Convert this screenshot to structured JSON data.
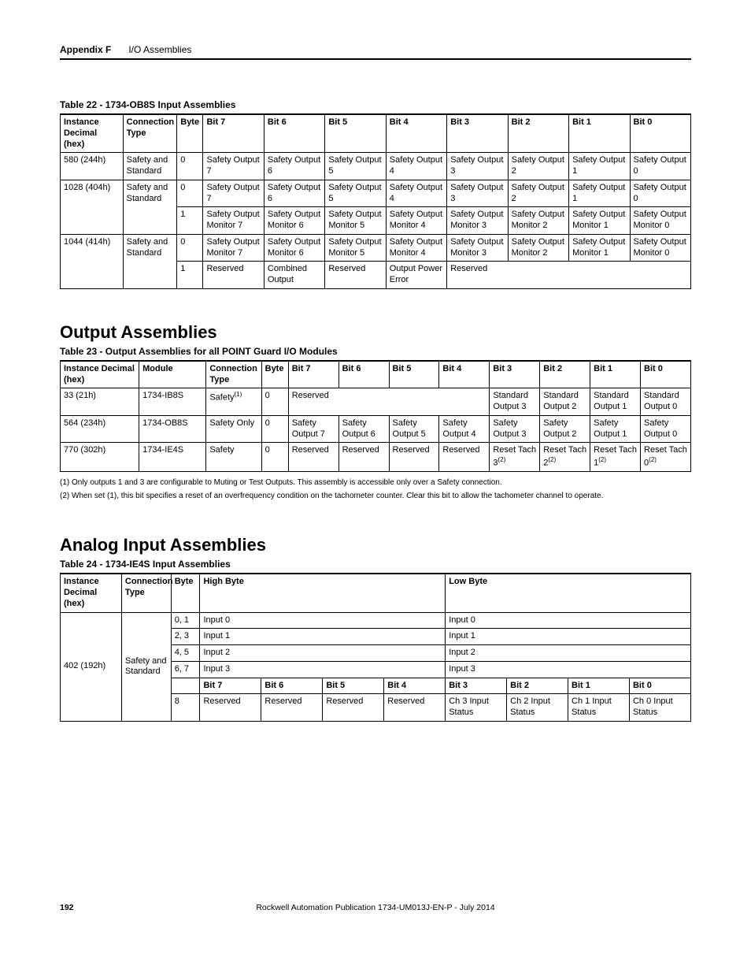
{
  "header": {
    "appendix": "Appendix F",
    "subtitle": "I/O Assemblies"
  },
  "table22": {
    "caption": "Table 22 - 1734-OB8S Input Assemblies",
    "headers": [
      "Instance Decimal (hex)",
      "Connection Type",
      "Byte",
      "Bit 7",
      "Bit 6",
      "Bit 5",
      "Bit 4",
      "Bit 3",
      "Bit 2",
      "Bit 1",
      "Bit 0"
    ],
    "rows": [
      {
        "instance": "580 (244h)",
        "conn": "Safety and Standard",
        "byte": "0",
        "b7": "Safety Output 7",
        "b6": "Safety Output 6",
        "b5": "Safety Output 5",
        "b4": "Safety Output 4",
        "b3": "Safety Output 3",
        "b2": "Safety Output 2",
        "b1": "Safety Output 1",
        "b0": "Safety Output 0"
      },
      {
        "instance": "1028 (404h)",
        "conn": "Safety and Standard",
        "byte": "0",
        "b7": "Safety Output 7",
        "b6": "Safety Output 6",
        "b5": "Safety Output 5",
        "b4": "Safety Output 4",
        "b3": "Safety Output 3",
        "b2": "Safety Output 2",
        "b1": "Safety Output 1",
        "b0": "Safety Output 0",
        "byte2": "1",
        "r2b7": "Safety Output Monitor 7",
        "r2b6": "Safety Output Monitor 6",
        "r2b5": "Safety Output Monitor 5",
        "r2b4": "Safety Output Monitor 4",
        "r2b3": "Safety Output Monitor 3",
        "r2b2": "Safety Output Monitor 2",
        "r2b1": "Safety Output Monitor 1",
        "r2b0": "Safety Output Monitor 0"
      },
      {
        "instance": "1044 (414h)",
        "conn": "Safety and Standard",
        "byte": "0",
        "b7": "Safety Output Monitor 7",
        "b6": "Safety Output Monitor 6",
        "b5": "Safety Output Monitor 5",
        "b4": "Safety Output Monitor 4",
        "b3": "Safety Output Monitor 3",
        "b2": "Safety Output Monitor 2",
        "b1": "Safety Output Monitor 1",
        "b0": "Safety Output Monitor 0",
        "byte2": "1",
        "r2b7": "Reserved",
        "r2b6": "Combined Output",
        "r2b5": "Reserved",
        "r2b4": "Output Power Error",
        "r2rest": "Reserved"
      }
    ]
  },
  "output_section": {
    "title": "Output Assemblies"
  },
  "table23": {
    "caption": "Table 23 - Output Assemblies for all POINT Guard I/O Modules",
    "headers": [
      "Instance Decimal (hex)",
      "Module",
      "Connection Type",
      "Byte",
      "Bit 7",
      "Bit 6",
      "Bit 5",
      "Bit 4",
      "Bit 3",
      "Bit 2",
      "Bit 1",
      "Bit 0"
    ],
    "rows": [
      {
        "instance": "33 (21h)",
        "module": "1734-IB8S",
        "conn_prefix": "Safety",
        "conn_sup": "(1)",
        "byte": "0",
        "reserved_span": "Reserved",
        "b3": "Standard Output 3",
        "b2": "Standard Output 2",
        "b1": "Standard Output 1",
        "b0": "Standard Output 0"
      },
      {
        "instance": "564 (234h)",
        "module": "1734-OB8S",
        "conn": "Safety Only",
        "byte": "0",
        "b7": "Safety Output 7",
        "b6": "Safety Output 6",
        "b5": "Safety Output 5",
        "b4": "Safety Output 4",
        "b3": "Safety Output 3",
        "b2": "Safety Output 2",
        "b1": "Safety Output 1",
        "b0": "Safety Output 0"
      },
      {
        "instance": "770 (302h)",
        "module": "1734-IE4S",
        "conn": "Safety",
        "byte": "0",
        "b7": "Reserved",
        "b6": "Reserved",
        "b5": "Reserved",
        "b4": "Reserved",
        "b3_prefix": "Reset Tach 3",
        "b3_sup": "(2)",
        "b2_prefix": "Reset Tach 2",
        "b2_sup": "(2)",
        "b1_prefix": "Reset Tach 1",
        "b1_sup": "(2)",
        "b0_prefix": "Reset Tach 0",
        "b0_sup": "(2)"
      }
    ],
    "footnote1": "(1)   Only outputs 1 and 3 are configurable to Muting or Test Outputs. This assembly is accessible only over a Safety connection.",
    "footnote2": "(2)   When set (1), this bit specifies a reset of an overfrequency condition on the tachometer counter. Clear this bit to allow the tachometer channel to operate."
  },
  "analog_section": {
    "title": "Analog Input Assemblies"
  },
  "table24": {
    "caption": "Table 24 - 1734-IE4S Input Assemblies",
    "headers": {
      "instance": "Instance Decimal (hex)",
      "conn": "Connection Type",
      "byte": "Byte",
      "high": "High Byte",
      "low": "Low Byte"
    },
    "instance": "402 (192h)",
    "conn": "Safety and Standard",
    "rows": [
      {
        "byte": "0, 1",
        "high": "Input 0",
        "low": "Input 0"
      },
      {
        "byte": "2, 3",
        "high": "Input 1",
        "low": "Input 1"
      },
      {
        "byte": "4, 5",
        "high": "Input 2",
        "low": "Input 2"
      },
      {
        "byte": "6, 7",
        "high": "Input 3",
        "low": "Input 3"
      }
    ],
    "bit_headers": [
      "Bit 7",
      "Bit 6",
      "Bit 5",
      "Bit 4",
      "Bit 3",
      "Bit 2",
      "Bit 1",
      "Bit 0"
    ],
    "byte8": "8",
    "byte8_cells": [
      "Reserved",
      "Reserved",
      "Reserved",
      "Reserved",
      "Ch 3 Input Status",
      "Ch 2 Input Status",
      "Ch 1 Input Status",
      "Ch 0 Input Status"
    ]
  },
  "footer": {
    "page": "192",
    "pub": "Rockwell Automation Publication 1734-UM013J-EN-P - July 2014"
  }
}
